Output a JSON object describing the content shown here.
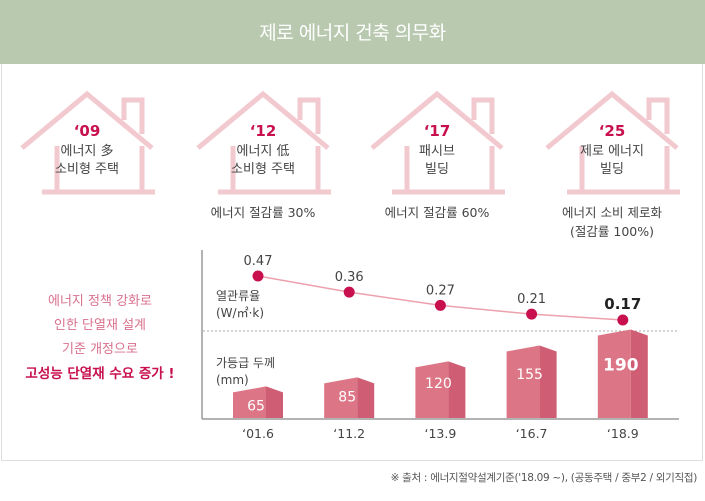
{
  "header": {
    "title": "제로 에너지 건축 의무화"
  },
  "houses": [
    {
      "year": "‘09",
      "line1": "에너지 多",
      "line2": "소비형 주택",
      "caption": []
    },
    {
      "year": "‘12",
      "line1": "에너지 低",
      "line2": "소비형 주택",
      "caption": [
        "에너지 절감률 30%"
      ]
    },
    {
      "year": "‘17",
      "line1": "패시브",
      "line2": "빌딩",
      "caption": [
        "에너지 절감률 60%"
      ]
    },
    {
      "year": "‘25",
      "line1": "제로 에너지",
      "line2": "빌딩",
      "caption": [
        "에너지 소비 제로화",
        "(절감률 100%)"
      ]
    }
  ],
  "lead": {
    "lines": [
      "에너지 정책 강화로",
      "인한 단열재 설계",
      "기준 개정으로"
    ],
    "highlight": "고성능 단열재 수요 증가 !"
  },
  "colors": {
    "header": "#b8c9b0",
    "house_stroke": "#f2c9cf",
    "accent": "#c8104f",
    "bar_front": "#dc7585",
    "bar_side": "#cf5d73",
    "line": "#eda0ad"
  },
  "chart_data": {
    "type": "bar+line",
    "categories": [
      "‘01.6",
      "‘11.2",
      "‘13.9",
      "‘16.7",
      "‘18.9"
    ],
    "series": [
      {
        "name": "열관류율",
        "unit": "(W/㎡·k)",
        "type": "line",
        "values": [
          0.47,
          0.36,
          0.27,
          0.21,
          0.17
        ],
        "labels": [
          "0.47",
          "0.36",
          "0.27",
          "0.21",
          "0.17"
        ]
      },
      {
        "name": "가등급 두께",
        "unit": "(mm)",
        "type": "bar",
        "values": [
          65,
          85,
          120,
          155,
          190
        ],
        "labels": [
          "65",
          "85",
          "120",
          "155",
          "190"
        ]
      }
    ],
    "highlight_index": 4,
    "grid": false,
    "title": ""
  },
  "footnote": "※ 출처 : 에너지절약설계기준('18.09 ~), (공동주택 / 중부2 / 외기직접)"
}
